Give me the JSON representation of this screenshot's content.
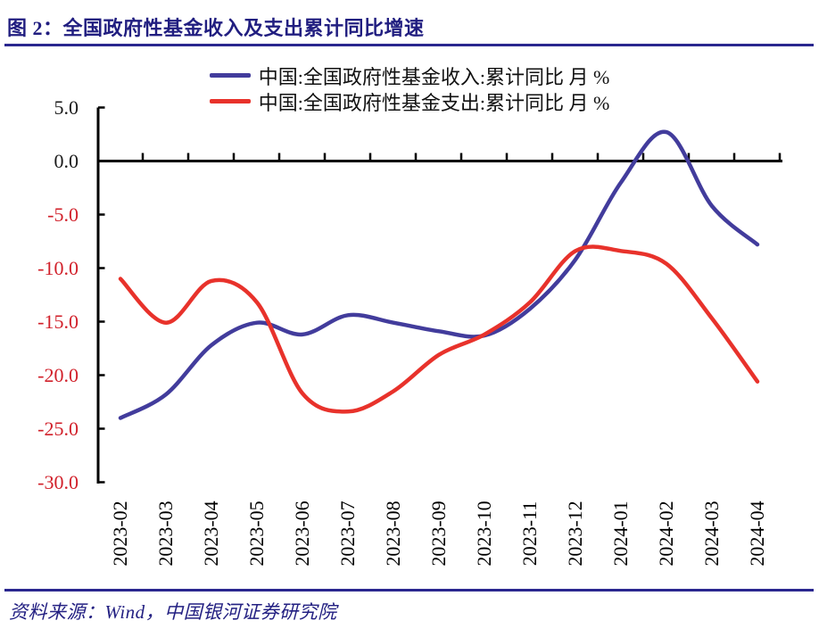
{
  "header": {
    "title": "图 2：全国政府性基金收入及支出累计同比增速"
  },
  "footer": {
    "source": "资料来源：Wind，中国银河证券研究院"
  },
  "colors": {
    "title_navy": "#211e80",
    "rule_navy": "#2a278f",
    "footer_navy": "#232082",
    "axis_black": "#000000",
    "negative_tick_red": "#d1202a",
    "positive_tick_black": "#1a1a1a"
  },
  "chart_data": {
    "type": "line",
    "title": "全国政府性基金收入及支出累计同比增速",
    "categories": [
      "2023-02",
      "2023-03",
      "2023-04",
      "2023-05",
      "2023-06",
      "2023-07",
      "2023-08",
      "2023-09",
      "2023-10",
      "2023-11",
      "2023-12",
      "2024-01",
      "2024-02",
      "2024-03",
      "2024-04"
    ],
    "series": [
      {
        "name": "中国:全国政府性基金收入:累计同比 月 %",
        "color": "#423c9c",
        "values": [
          -24.0,
          -21.8,
          -17.2,
          -15.1,
          -16.2,
          -14.4,
          -15.1,
          -15.9,
          -16.3,
          -13.8,
          -9.2,
          -2.0,
          2.7,
          -4.2,
          -7.8
        ]
      },
      {
        "name": "中国:全国政府性基金支出:累计同比 月 %",
        "color": "#e8322b",
        "values": [
          -11.0,
          -15.1,
          -11.2,
          -13.2,
          -21.7,
          -23.4,
          -21.5,
          -18.1,
          -16.2,
          -13.2,
          -8.4,
          -8.4,
          -9.6,
          -14.7,
          -20.6
        ]
      }
    ],
    "xlabel": "",
    "ylabel": "%",
    "ylim": [
      -30.0,
      5.0
    ],
    "y_ticks": [
      5.0,
      0.0,
      -5.0,
      -10.0,
      -15.0,
      -20.0,
      -25.0,
      -30.0
    ],
    "grid": false,
    "x_axis_at_zero": true,
    "legend_position": "top-center",
    "line_smoothing": true
  }
}
